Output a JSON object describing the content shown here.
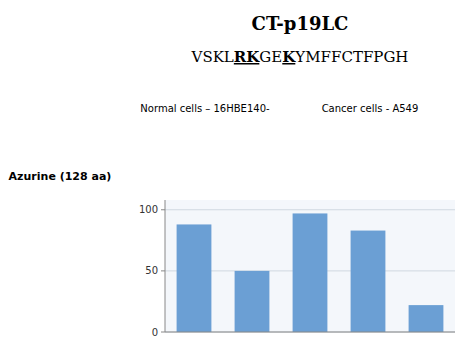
{
  "chart_data": {
    "type": "bar",
    "title": "CT-p19LC",
    "categories": [
      null,
      null,
      null,
      null,
      null
    ],
    "values": [
      88,
      50,
      97,
      83,
      22
    ],
    "color": "#6b9fd4",
    "ylim": [
      0,
      108
    ],
    "yticks": [
      0,
      50,
      100
    ],
    "grid": true,
    "tick_labels": "y",
    "annotations": [
      [
        "VSKL",
        "RK",
        "GE",
        "K",
        "YMFFCTFPGH"
      ],
      "Azurine (128 aa)",
      "Normal cells – 16HBE140-",
      "Cancer cells - A549"
    ]
  }
}
